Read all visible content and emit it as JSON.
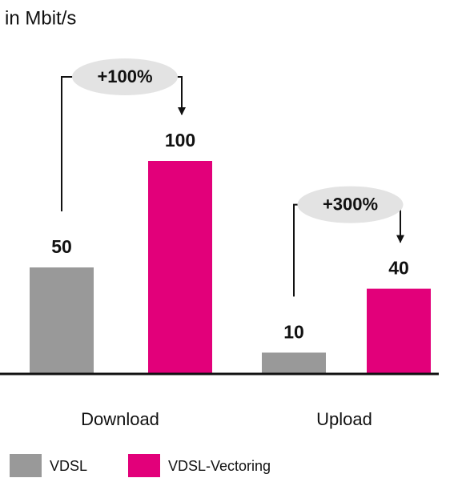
{
  "chart_data": {
    "type": "bar",
    "title": "in Mbit/s",
    "categories": [
      "Download",
      "Upload"
    ],
    "series": [
      {
        "name": "VDSL",
        "color": "#999999",
        "values": [
          50,
          10
        ]
      },
      {
        "name": "VDSL-Vectoring",
        "color": "#e2007a",
        "values": [
          100,
          40
        ]
      }
    ],
    "annotations": [
      "+100%",
      "+300%"
    ],
    "ylim": [
      0,
      100
    ]
  }
}
